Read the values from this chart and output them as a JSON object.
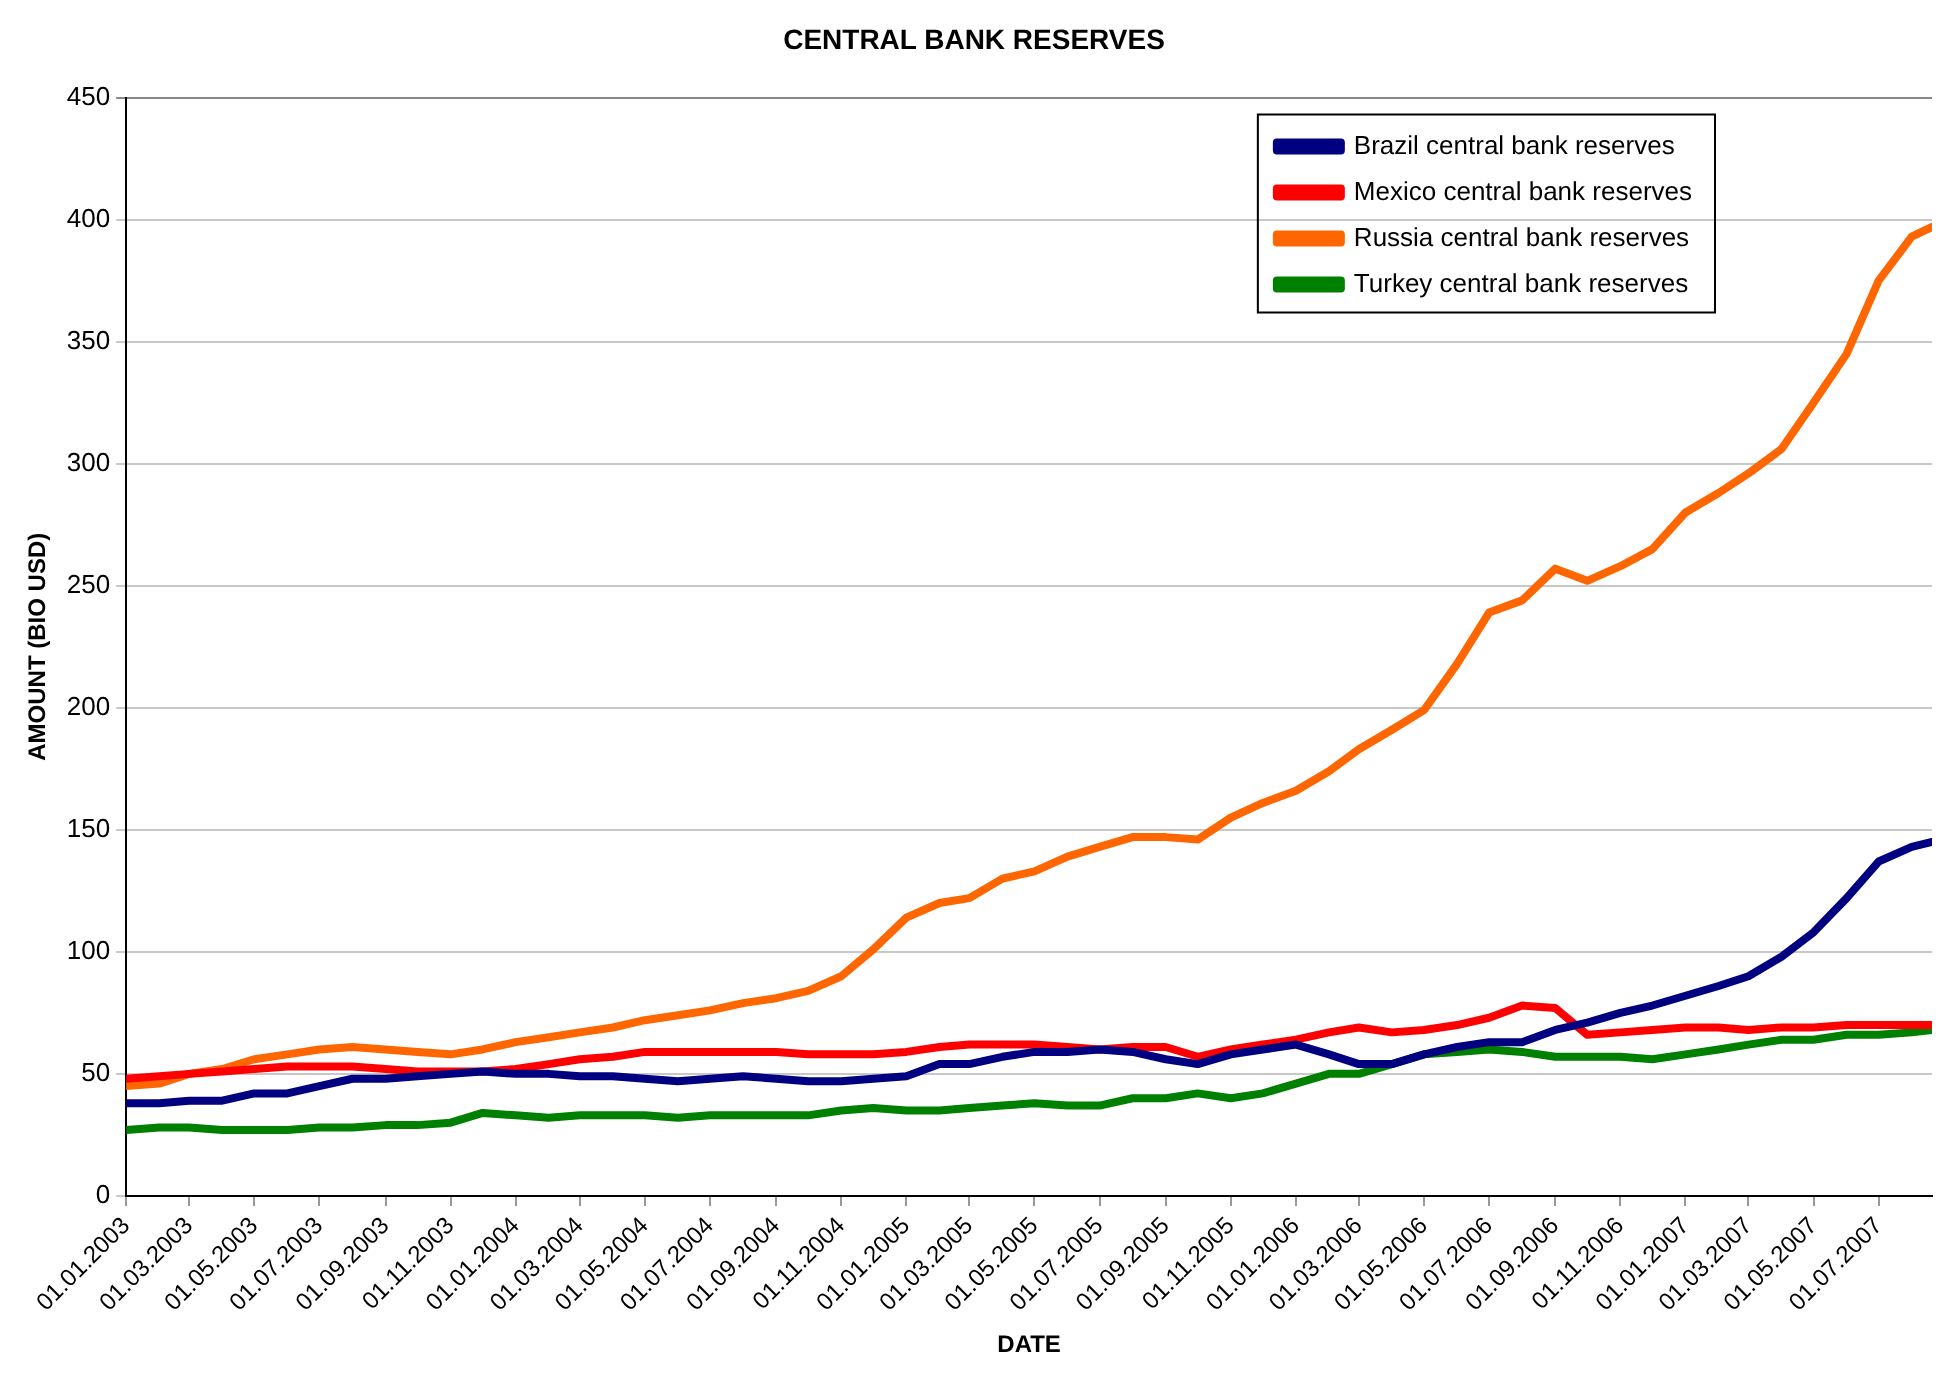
{
  "chart_data": {
    "type": "line",
    "title": "CENTRAL BANK RESERVES",
    "xlabel": "DATE",
    "ylabel": "AMOUNT (BIO USD)",
    "x": [
      "2003-01-01",
      "2003-02-01",
      "2003-03-01",
      "2003-04-01",
      "2003-05-01",
      "2003-06-01",
      "2003-07-01",
      "2003-08-01",
      "2003-09-01",
      "2003-10-01",
      "2003-11-01",
      "2003-12-01",
      "2004-01-01",
      "2004-02-01",
      "2004-03-01",
      "2004-04-01",
      "2004-05-01",
      "2004-06-01",
      "2004-07-01",
      "2004-08-01",
      "2004-09-01",
      "2004-10-01",
      "2004-11-01",
      "2004-12-01",
      "2005-01-01",
      "2005-02-01",
      "2005-03-01",
      "2005-04-01",
      "2005-05-01",
      "2005-06-01",
      "2005-07-01",
      "2005-08-01",
      "2005-09-01",
      "2005-10-01",
      "2005-11-01",
      "2005-12-01",
      "2006-01-01",
      "2006-02-01",
      "2006-03-01",
      "2006-04-01",
      "2006-05-01",
      "2006-06-01",
      "2006-07-01",
      "2006-08-01",
      "2006-09-01",
      "2006-10-01",
      "2006-11-01",
      "2006-12-01",
      "2007-01-01",
      "2007-02-01",
      "2007-03-01",
      "2007-04-01",
      "2007-05-01",
      "2007-06-01",
      "2007-07-01",
      "2007-08-01",
      "2007-08-20"
    ],
    "series": [
      {
        "name": "Brazil central bank reserves",
        "color": "#000080",
        "values": [
          38,
          38,
          39,
          39,
          42,
          42,
          45,
          48,
          48,
          49,
          50,
          51,
          50,
          50,
          49,
          49,
          48,
          47,
          48,
          49,
          48,
          47,
          47,
          48,
          49,
          54,
          54,
          57,
          59,
          59,
          60,
          59,
          56,
          54,
          58,
          60,
          62,
          58,
          54,
          54,
          58,
          61,
          63,
          63,
          68,
          71,
          75,
          78,
          82,
          86,
          90,
          98,
          108,
          122,
          137,
          143,
          145
        ]
      },
      {
        "name": "Mexico central bank reserves",
        "color": "#ff0000",
        "values": [
          48,
          49,
          50,
          51,
          52,
          53,
          53,
          53,
          52,
          51,
          51,
          51,
          52,
          54,
          56,
          57,
          59,
          59,
          59,
          59,
          59,
          58,
          58,
          58,
          59,
          61,
          62,
          62,
          62,
          61,
          60,
          61,
          61,
          57,
          60,
          62,
          64,
          67,
          69,
          67,
          68,
          70,
          73,
          78,
          77,
          66,
          67,
          68,
          69,
          69,
          68,
          69,
          69,
          70,
          70,
          70,
          70
        ]
      },
      {
        "name": "Russia central bank reserves",
        "color": "#ff6600",
        "values": [
          45,
          46,
          50,
          52,
          56,
          58,
          60,
          61,
          60,
          59,
          58,
          60,
          63,
          65,
          67,
          69,
          72,
          74,
          76,
          79,
          81,
          84,
          90,
          101,
          114,
          120,
          122,
          130,
          133,
          139,
          143,
          147,
          147,
          146,
          155,
          161,
          166,
          174,
          183,
          191,
          199,
          218,
          239,
          244,
          257,
          252,
          258,
          265,
          280,
          288,
          296,
          306,
          325,
          345,
          375,
          393,
          397
        ]
      },
      {
        "name": "Turkey central bank reserves",
        "color": "#008000",
        "values": [
          27,
          28,
          28,
          27,
          27,
          27,
          28,
          28,
          29,
          29,
          30,
          34,
          33,
          32,
          33,
          33,
          33,
          32,
          33,
          33,
          33,
          33,
          35,
          36,
          35,
          35,
          36,
          37,
          38,
          37,
          37,
          40,
          40,
          42,
          40,
          42,
          46,
          50,
          50,
          54,
          58,
          59,
          60,
          59,
          57,
          57,
          57,
          56,
          58,
          60,
          62,
          64,
          64,
          66,
          66,
          67,
          68
        ]
      }
    ],
    "xlim": [
      "2003-01-01",
      "2007-08-20"
    ],
    "xticks": [
      {
        "value": "2003-01-01",
        "label": "01.01.2003"
      },
      {
        "value": "2003-03-01",
        "label": "01.03.2003"
      },
      {
        "value": "2003-05-01",
        "label": "01.05.2003"
      },
      {
        "value": "2003-07-01",
        "label": "01.07.2003"
      },
      {
        "value": "2003-09-01",
        "label": "01.09.2003"
      },
      {
        "value": "2003-11-01",
        "label": "01.11.2003"
      },
      {
        "value": "2004-01-01",
        "label": "01.01.2004"
      },
      {
        "value": "2004-03-01",
        "label": "01.03.2004"
      },
      {
        "value": "2004-05-01",
        "label": "01.05.2004"
      },
      {
        "value": "2004-07-01",
        "label": "01.07.2004"
      },
      {
        "value": "2004-09-01",
        "label": "01.09.2004"
      },
      {
        "value": "2004-11-01",
        "label": "01.11.2004"
      },
      {
        "value": "2005-01-01",
        "label": "01.01.2005"
      },
      {
        "value": "2005-03-01",
        "label": "01.03.2005"
      },
      {
        "value": "2005-05-01",
        "label": "01.05.2005"
      },
      {
        "value": "2005-07-01",
        "label": "01.07.2005"
      },
      {
        "value": "2005-09-01",
        "label": "01.09.2005"
      },
      {
        "value": "2005-11-01",
        "label": "01.11.2005"
      },
      {
        "value": "2006-01-01",
        "label": "01.01.2006"
      },
      {
        "value": "2006-03-01",
        "label": "01.03.2006"
      },
      {
        "value": "2006-05-01",
        "label": "01.05.2006"
      },
      {
        "value": "2006-07-01",
        "label": "01.07.2006"
      },
      {
        "value": "2006-09-01",
        "label": "01.09.2006"
      },
      {
        "value": "2006-11-01",
        "label": "01.11.2006"
      },
      {
        "value": "2007-01-01",
        "label": "01.01.2007"
      },
      {
        "value": "2007-03-01",
        "label": "01.03.2007"
      },
      {
        "value": "2007-05-01",
        "label": "01.05.2007"
      },
      {
        "value": "2007-07-01",
        "label": "01.07.2007"
      }
    ],
    "ylim": [
      0,
      450
    ],
    "yticks": [
      0,
      50,
      100,
      150,
      200,
      250,
      300,
      350,
      400,
      450
    ],
    "grid": "y",
    "legend": "top right",
    "marker": "none",
    "line_style": "solid"
  }
}
